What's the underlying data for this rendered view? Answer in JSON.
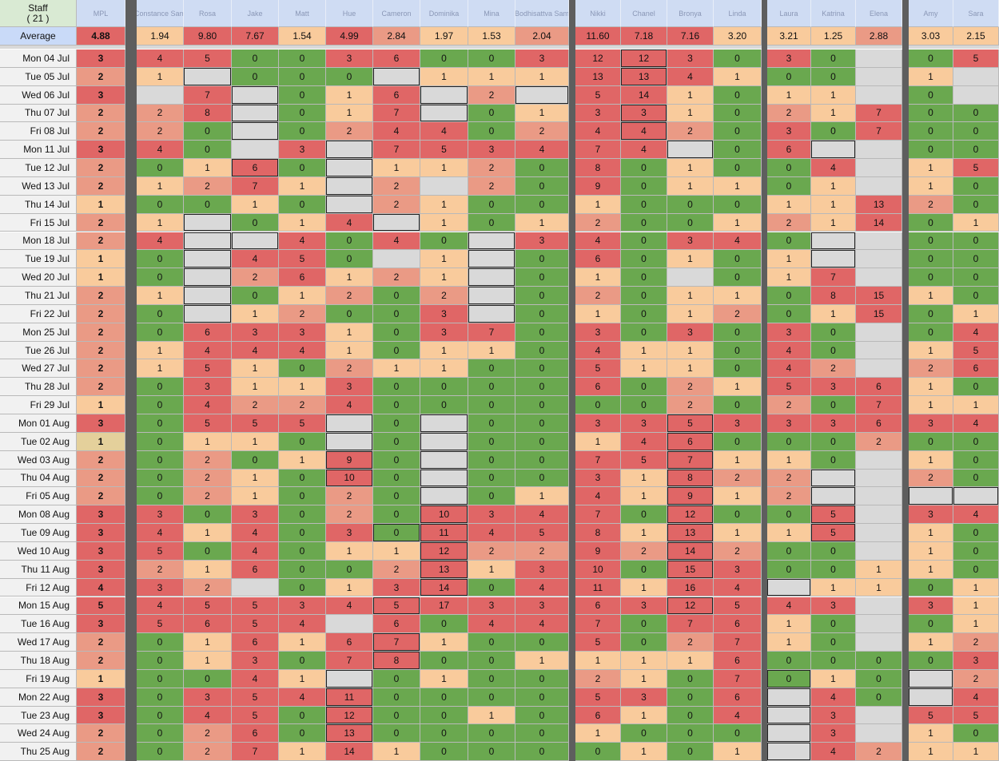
{
  "staff_header": {
    "label": "Staff",
    "count": "( 21 )"
  },
  "average_label": "Average",
  "columns": [
    {
      "name": "MPL",
      "average": "4.88"
    },
    {
      "name": "Constance Sam",
      "average": "1.94"
    },
    {
      "name": "Rosa",
      "average": "9.80"
    },
    {
      "name": "Jake",
      "average": "7.67"
    },
    {
      "name": "Matt",
      "average": "1.54"
    },
    {
      "name": "Hue",
      "average": "4.99"
    },
    {
      "name": "Cameron",
      "average": "2.84"
    },
    {
      "name": "Dominika",
      "average": "1.97"
    },
    {
      "name": "Mina",
      "average": "1.53"
    },
    {
      "name": "Bodhisattva Sam",
      "average": "2.04"
    },
    {
      "name": "Nikki",
      "average": "11.60"
    },
    {
      "name": "Chanel",
      "average": "7.18"
    },
    {
      "name": "Bronya",
      "average": "7.16"
    },
    {
      "name": "Linda",
      "average": "3.20"
    },
    {
      "name": "Laura",
      "average": "3.21"
    },
    {
      "name": "Katrina",
      "average": "1.25"
    },
    {
      "name": "Elena",
      "average": "2.88"
    },
    {
      "name": "Amy",
      "average": "3.03"
    },
    {
      "name": "Sara",
      "average": "2.15"
    }
  ],
  "rows": [
    {
      "date": "Mon 04 Jul",
      "v": [
        "3",
        "4",
        "5",
        "0",
        "0",
        "3",
        "6",
        "0",
        "0",
        "3",
        "12",
        "12",
        "3",
        "0",
        "3",
        "0",
        "",
        "0",
        "5"
      ]
    },
    {
      "date": "Tue 05 Jul",
      "v": [
        "2",
        "1",
        "",
        "0",
        "0",
        "0",
        "",
        "1",
        "1",
        "1",
        "13",
        "13",
        "4",
        "1",
        "0",
        "0",
        "",
        "1",
        ""
      ]
    },
    {
      "date": "Wed 06 Jul",
      "v": [
        "3",
        "",
        "7",
        "",
        "0",
        "1",
        "6",
        "",
        "2",
        "",
        "5",
        "14",
        "1",
        "0",
        "1",
        "1",
        "",
        "0",
        ""
      ]
    },
    {
      "date": "Thu 07 Jul",
      "v": [
        "2",
        "2",
        "8",
        "",
        "0",
        "1",
        "7",
        "",
        "0",
        "1",
        "3",
        "3",
        "1",
        "0",
        "2",
        "1",
        "7",
        "0",
        "0"
      ]
    },
    {
      "date": "Fri 08 Jul",
      "v": [
        "2",
        "2",
        "0",
        "",
        "0",
        "2",
        "4",
        "4",
        "0",
        "2",
        "4",
        "4",
        "2",
        "0",
        "3",
        "0",
        "7",
        "0",
        "0"
      ]
    },
    {
      "date": "Mon 11 Jul",
      "v": [
        "3",
        "4",
        "0",
        "",
        "3",
        "",
        "7",
        "5",
        "3",
        "4",
        "7",
        "4",
        "",
        "0",
        "6",
        "",
        "",
        "0",
        "0"
      ]
    },
    {
      "date": "Tue 12 Jul",
      "v": [
        "2",
        "0",
        "1",
        "6",
        "0",
        "",
        "1",
        "1",
        "2",
        "0",
        "8",
        "0",
        "1",
        "0",
        "0",
        "4",
        "",
        "1",
        "5"
      ]
    },
    {
      "date": "Wed 13 Jul",
      "v": [
        "2",
        "1",
        "2",
        "7",
        "1",
        "",
        "2",
        "",
        "2",
        "0",
        "9",
        "0",
        "1",
        "1",
        "0",
        "1",
        "",
        "1",
        "0"
      ]
    },
    {
      "date": "Thu 14 Jul",
      "v": [
        "1",
        "0",
        "0",
        "1",
        "0",
        "",
        "2",
        "1",
        "0",
        "0",
        "1",
        "0",
        "0",
        "0",
        "1",
        "1",
        "13",
        "2",
        "0"
      ]
    },
    {
      "date": "Fri 15 Jul",
      "v": [
        "2",
        "1",
        "",
        "0",
        "1",
        "4",
        "",
        "1",
        "0",
        "1",
        "2",
        "0",
        "0",
        "1",
        "2",
        "1",
        "14",
        "0",
        "1"
      ]
    },
    {
      "date": "Mon 18 Jul",
      "v": [
        "2",
        "4",
        "",
        "",
        "4",
        "0",
        "4",
        "0",
        "",
        "3",
        "4",
        "0",
        "3",
        "4",
        "0",
        "",
        "",
        "0",
        "0"
      ]
    },
    {
      "date": "Tue 19 Jul",
      "v": [
        "1",
        "0",
        "",
        "4",
        "5",
        "0",
        "",
        "1",
        "",
        "0",
        "6",
        "0",
        "1",
        "0",
        "1",
        "",
        "",
        "0",
        "0"
      ]
    },
    {
      "date": "Wed 20 Jul",
      "v": [
        "1",
        "0",
        "",
        "2",
        "6",
        "1",
        "2",
        "1",
        "",
        "0",
        "1",
        "0",
        "",
        "0",
        "1",
        "7",
        "",
        "0",
        "0"
      ]
    },
    {
      "date": "Thu 21 Jul",
      "v": [
        "2",
        "1",
        "",
        "0",
        "1",
        "2",
        "0",
        "2",
        "",
        "0",
        "2",
        "0",
        "1",
        "1",
        "0",
        "8",
        "15",
        "1",
        "0"
      ]
    },
    {
      "date": "Fri 22 Jul",
      "v": [
        "2",
        "0",
        "",
        "1",
        "2",
        "0",
        "0",
        "3",
        "",
        "0",
        "1",
        "0",
        "1",
        "2",
        "0",
        "1",
        "15",
        "0",
        "1"
      ]
    },
    {
      "date": "Mon 25 Jul",
      "v": [
        "2",
        "0",
        "6",
        "3",
        "3",
        "1",
        "0",
        "3",
        "7",
        "0",
        "3",
        "0",
        "3",
        "0",
        "3",
        "0",
        "",
        "0",
        "4"
      ]
    },
    {
      "date": "Tue 26 Jul",
      "v": [
        "2",
        "1",
        "4",
        "4",
        "4",
        "1",
        "0",
        "1",
        "1",
        "0",
        "4",
        "1",
        "1",
        "0",
        "4",
        "0",
        "",
        "1",
        "5"
      ]
    },
    {
      "date": "Wed 27 Jul",
      "v": [
        "2",
        "1",
        "5",
        "1",
        "0",
        "2",
        "1",
        "1",
        "0",
        "0",
        "5",
        "1",
        "1",
        "0",
        "4",
        "2",
        "",
        "2",
        "6"
      ]
    },
    {
      "date": "Thu 28 Jul",
      "v": [
        "2",
        "0",
        "3",
        "1",
        "1",
        "3",
        "0",
        "0",
        "0",
        "0",
        "6",
        "0",
        "2",
        "1",
        "5",
        "3",
        "6",
        "1",
        "0"
      ]
    },
    {
      "date": "Fri 29 Jul",
      "v": [
        "1",
        "0",
        "4",
        "2",
        "2",
        "4",
        "0",
        "0",
        "0",
        "0",
        "0",
        "0",
        "2",
        "0",
        "2",
        "0",
        "7",
        "1",
        "1"
      ]
    },
    {
      "date": "Mon 01 Aug",
      "v": [
        "3",
        "0",
        "5",
        "5",
        "5",
        "",
        "0",
        "",
        "0",
        "0",
        "3",
        "3",
        "5",
        "3",
        "3",
        "3",
        "6",
        "3",
        "4"
      ]
    },
    {
      "date": "Tue 02 Aug",
      "v": [
        "1",
        "0",
        "1",
        "1",
        "0",
        "",
        "0",
        "",
        "0",
        "0",
        "1",
        "4",
        "6",
        "0",
        "0",
        "0",
        "2",
        "0",
        "0"
      ]
    },
    {
      "date": "Wed 03 Aug",
      "v": [
        "2",
        "0",
        "2",
        "0",
        "1",
        "9",
        "0",
        "",
        "0",
        "0",
        "7",
        "5",
        "7",
        "1",
        "1",
        "0",
        "",
        "1",
        "0"
      ]
    },
    {
      "date": "Thu 04 Aug",
      "v": [
        "2",
        "0",
        "2",
        "1",
        "0",
        "10",
        "0",
        "",
        "0",
        "0",
        "3",
        "1",
        "8",
        "2",
        "2",
        "",
        "",
        "2",
        "0"
      ]
    },
    {
      "date": "Fri 05 Aug",
      "v": [
        "2",
        "0",
        "2",
        "1",
        "0",
        "2",
        "0",
        "",
        "0",
        "1",
        "4",
        "1",
        "9",
        "1",
        "2",
        "",
        "",
        "",
        ""
      ]
    },
    {
      "date": "Mon 08 Aug",
      "v": [
        "3",
        "3",
        "0",
        "3",
        "0",
        "2",
        "0",
        "10",
        "3",
        "4",
        "7",
        "0",
        "12",
        "0",
        "0",
        "5",
        "",
        "3",
        "4"
      ]
    },
    {
      "date": "Tue 09 Aug",
      "v": [
        "3",
        "4",
        "1",
        "4",
        "0",
        "3",
        "0",
        "11",
        "4",
        "5",
        "8",
        "1",
        "13",
        "1",
        "1",
        "5",
        "",
        "1",
        "0"
      ]
    },
    {
      "date": "Wed 10 Aug",
      "v": [
        "3",
        "5",
        "0",
        "4",
        "0",
        "1",
        "1",
        "12",
        "2",
        "2",
        "9",
        "2",
        "14",
        "2",
        "0",
        "0",
        "",
        "1",
        "0"
      ]
    },
    {
      "date": "Thu 11 Aug",
      "v": [
        "3",
        "2",
        "1",
        "6",
        "0",
        "0",
        "2",
        "13",
        "1",
        "3",
        "10",
        "0",
        "15",
        "3",
        "0",
        "0",
        "1",
        "1",
        "0"
      ]
    },
    {
      "date": "Fri 12 Aug",
      "v": [
        "4",
        "3",
        "2",
        "",
        "0",
        "1",
        "3",
        "14",
        "0",
        "4",
        "11",
        "1",
        "16",
        "4",
        "",
        "1",
        "1",
        "0",
        "1"
      ]
    },
    {
      "date": "Mon 15 Aug",
      "v": [
        "5",
        "4",
        "5",
        "5",
        "3",
        "4",
        "5",
        "17",
        "3",
        "3",
        "6",
        "3",
        "12",
        "5",
        "4",
        "3",
        "",
        "3",
        "1"
      ]
    },
    {
      "date": "Tue 16 Aug",
      "v": [
        "3",
        "5",
        "6",
        "5",
        "4",
        "",
        "6",
        "0",
        "4",
        "4",
        "7",
        "0",
        "7",
        "6",
        "1",
        "0",
        "",
        "0",
        "1"
      ]
    },
    {
      "date": "Wed 17 Aug",
      "v": [
        "2",
        "0",
        "1",
        "6",
        "1",
        "6",
        "7",
        "1",
        "0",
        "0",
        "5",
        "0",
        "2",
        "7",
        "1",
        "0",
        "",
        "1",
        "2"
      ]
    },
    {
      "date": "Thu 18 Aug",
      "v": [
        "2",
        "0",
        "1",
        "3",
        "0",
        "7",
        "8",
        "0",
        "0",
        "1",
        "1",
        "1",
        "1",
        "6",
        "0",
        "0",
        "0",
        "0",
        "3"
      ]
    },
    {
      "date": "Fri 19 Aug",
      "v": [
        "1",
        "0",
        "0",
        "4",
        "1",
        "",
        "0",
        "1",
        "0",
        "0",
        "2",
        "1",
        "0",
        "7",
        "0",
        "1",
        "0",
        "",
        "2"
      ]
    },
    {
      "date": "Mon 22 Aug",
      "v": [
        "3",
        "0",
        "3",
        "5",
        "4",
        "11",
        "0",
        "0",
        "0",
        "0",
        "5",
        "3",
        "0",
        "6",
        "",
        "4",
        "0",
        "",
        "4"
      ]
    },
    {
      "date": "Tue 23 Aug",
      "v": [
        "3",
        "0",
        "4",
        "5",
        "0",
        "12",
        "0",
        "0",
        "1",
        "0",
        "6",
        "1",
        "0",
        "4",
        "",
        "3",
        "",
        "5",
        "5"
      ]
    },
    {
      "date": "Wed 24 Aug",
      "v": [
        "2",
        "0",
        "2",
        "6",
        "0",
        "13",
        "0",
        "0",
        "0",
        "0",
        "1",
        "0",
        "0",
        "0",
        "",
        "3",
        "",
        "1",
        "0"
      ]
    },
    {
      "date": "Thu 25 Aug",
      "v": [
        "2",
        "0",
        "2",
        "7",
        "1",
        "14",
        "1",
        "0",
        "0",
        "0",
        "0",
        "1",
        "0",
        "1",
        "",
        "4",
        "2",
        "1",
        "1"
      ]
    }
  ]
}
